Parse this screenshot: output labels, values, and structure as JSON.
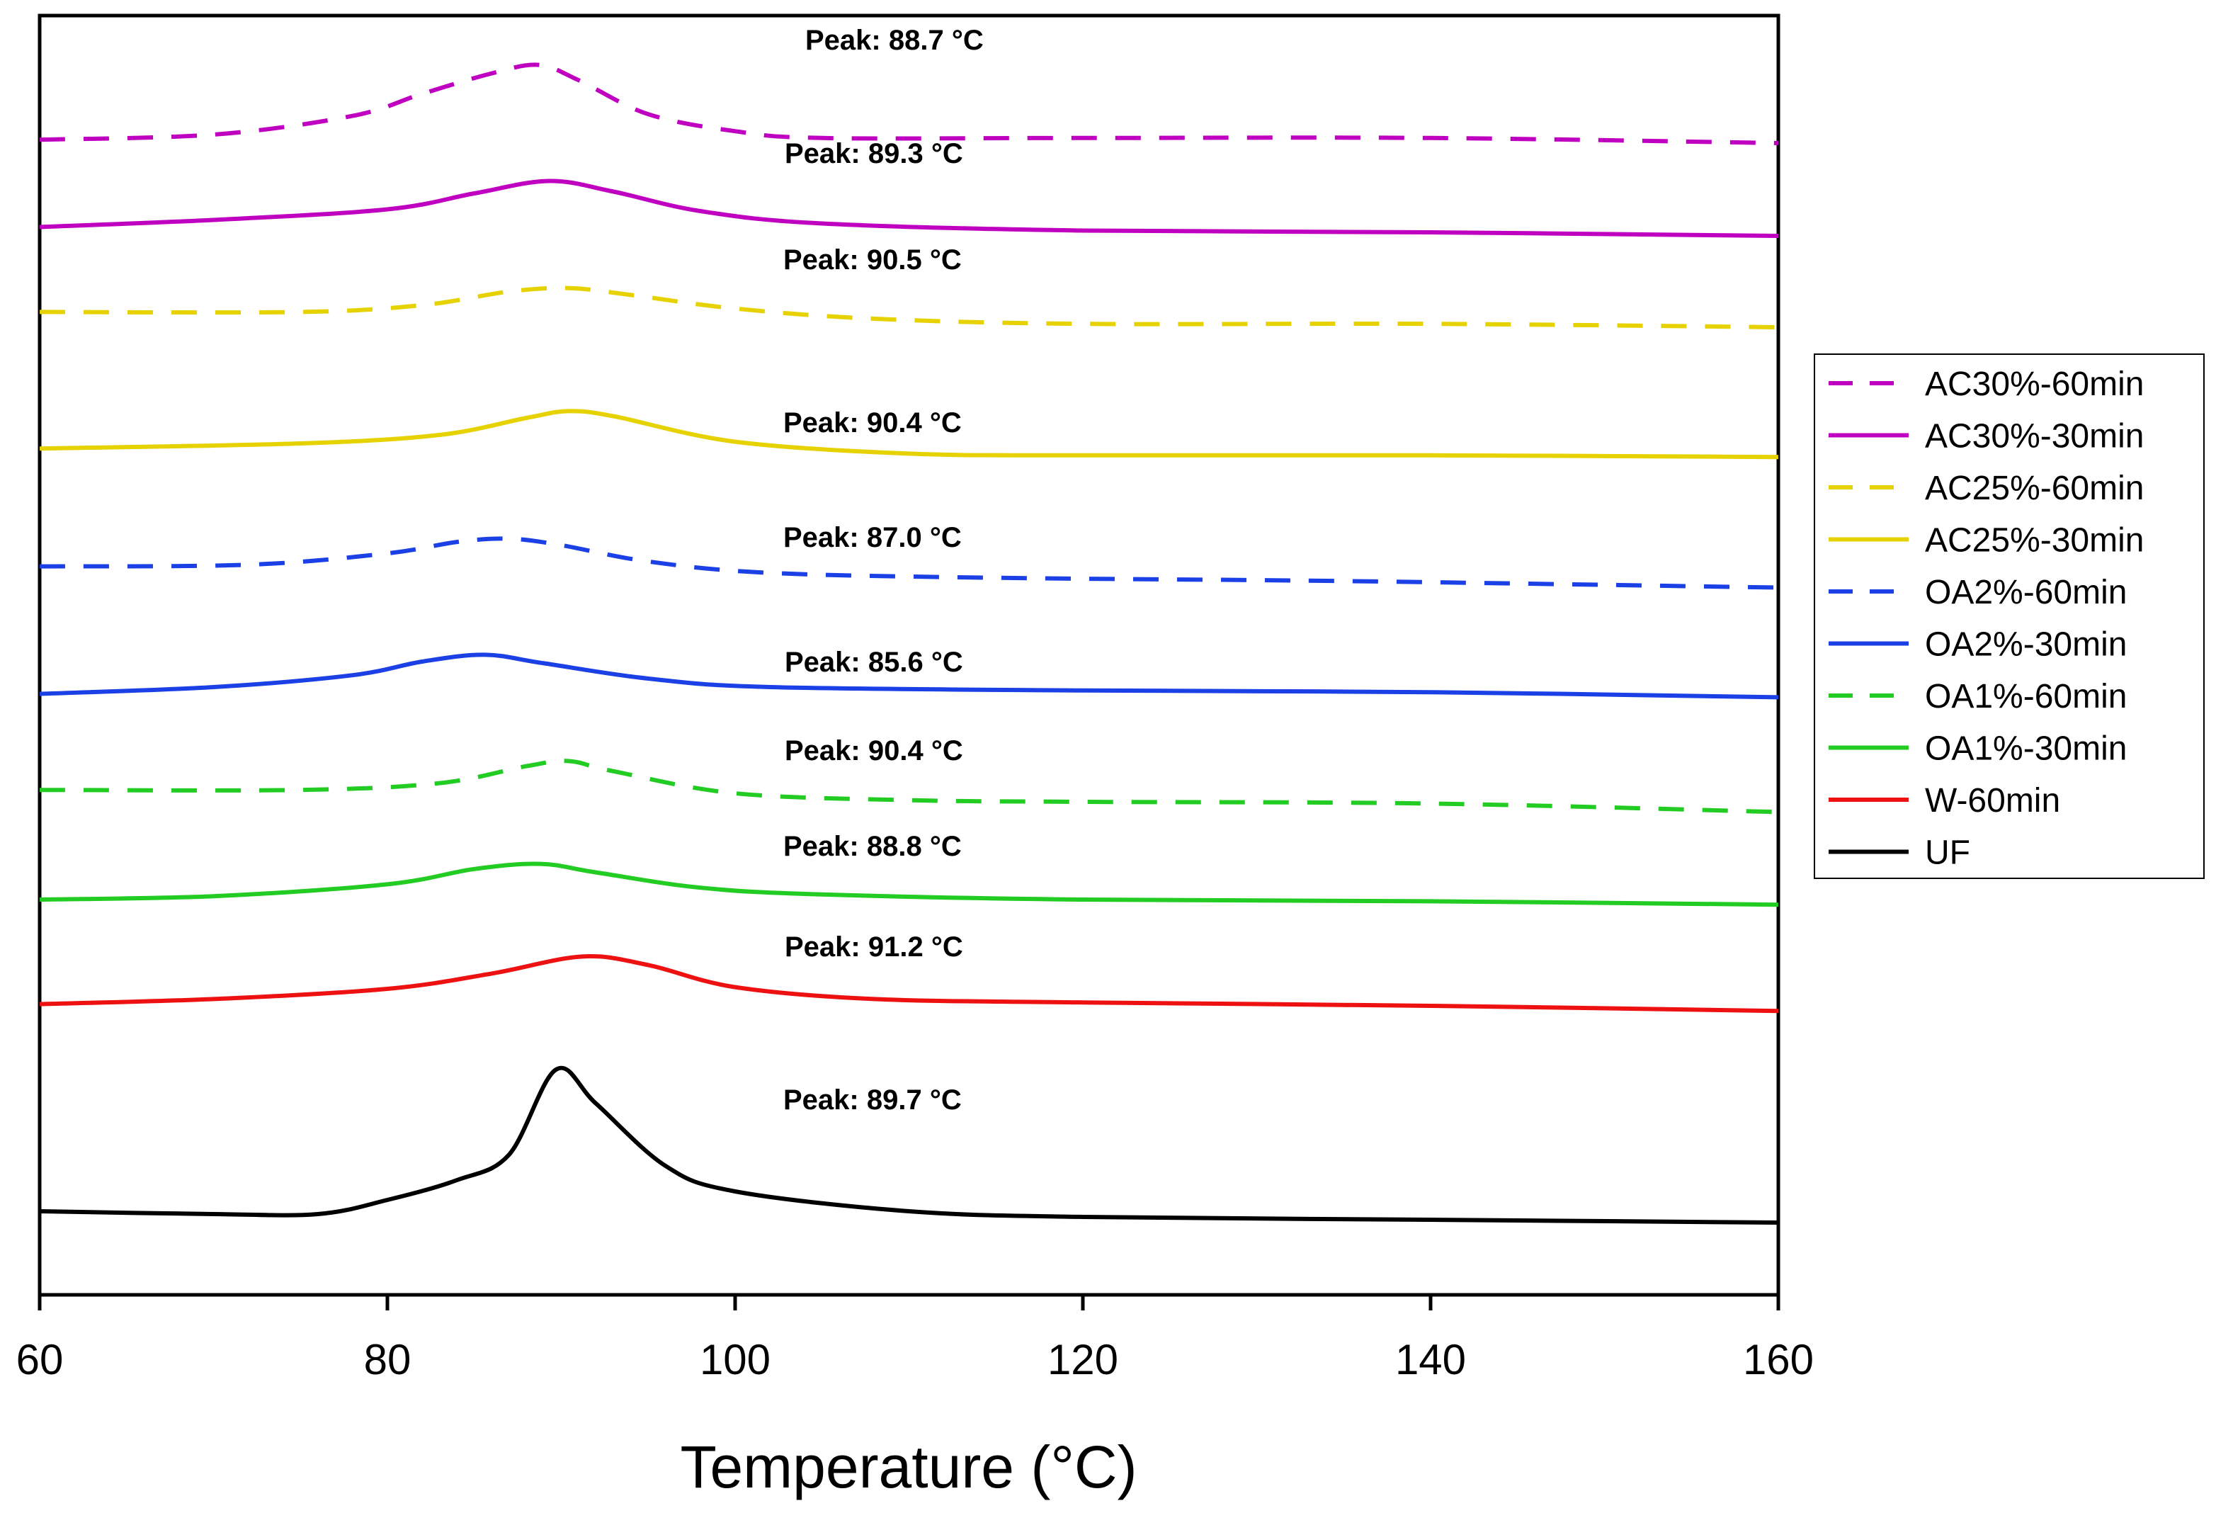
{
  "chart_data": {
    "type": "line",
    "title": "",
    "xlabel": "Temperature (°C)",
    "ylabel": "",
    "xlim": [
      60,
      160
    ],
    "x_ticks": [
      60,
      80,
      100,
      120,
      140,
      160
    ],
    "grid": false,
    "legend_position": "right",
    "series": [
      {
        "name": "AC30%-60min",
        "color": "#c000c0",
        "style": "dashed",
        "peak_label": "Peak: 88.7 °C",
        "points": [
          [
            60,
            73
          ],
          [
            70,
            70
          ],
          [
            78,
            59
          ],
          [
            82,
            46
          ],
          [
            86,
            34
          ],
          [
            88.7,
            29
          ],
          [
            91,
            38
          ],
          [
            95,
            58
          ],
          [
            100,
            68
          ],
          [
            105,
            72
          ],
          [
            120,
            72
          ],
          [
            140,
            72
          ],
          [
            160,
            75
          ]
        ]
      },
      {
        "name": "AC30%-30min",
        "color": "#c000c0",
        "style": "solid",
        "peak_label": "Peak: 89.3 °C",
        "points": [
          [
            60,
            57
          ],
          [
            70,
            53
          ],
          [
            80,
            47
          ],
          [
            85,
            38
          ],
          [
            89.3,
            31
          ],
          [
            93,
            37
          ],
          [
            98,
            48
          ],
          [
            105,
            55
          ],
          [
            120,
            59
          ],
          [
            140,
            60
          ],
          [
            160,
            62
          ]
        ]
      },
      {
        "name": "AC25%-60min",
        "color": "#e6d200",
        "style": "dashed",
        "peak_label": "Peak: 90.5 °C",
        "points": [
          [
            60,
            46
          ],
          [
            75,
            46
          ],
          [
            82,
            42
          ],
          [
            87,
            34
          ],
          [
            90.5,
            32
          ],
          [
            94,
            36
          ],
          [
            100,
            44
          ],
          [
            108,
            50
          ],
          [
            120,
            53
          ],
          [
            140,
            53
          ],
          [
            160,
            55
          ]
        ]
      },
      {
        "name": "AC25%-30min",
        "color": "#e6d200",
        "style": "solid",
        "peak_label": "Peak: 90.4 °C",
        "points": [
          [
            60,
            43
          ],
          [
            75,
            40
          ],
          [
            83,
            35
          ],
          [
            88,
            25
          ],
          [
            90.4,
            21
          ],
          [
            93,
            24
          ],
          [
            100,
            39
          ],
          [
            110,
            46
          ],
          [
            120,
            47
          ],
          [
            140,
            47
          ],
          [
            160,
            48
          ]
        ]
      },
      {
        "name": "OA2%-60min",
        "color": "#1a40e6",
        "style": "dashed",
        "peak_label": "Peak: 87.0 °C",
        "points": [
          [
            60,
            52
          ],
          [
            72,
            51
          ],
          [
            80,
            44
          ],
          [
            84,
            37
          ],
          [
            87,
            35
          ],
          [
            90,
            39
          ],
          [
            95,
            49
          ],
          [
            102,
            56
          ],
          [
            115,
            59
          ],
          [
            135,
            61
          ],
          [
            160,
            65
          ]
        ]
      },
      {
        "name": "OA2%-30min",
        "color": "#1a40e6",
        "style": "solid",
        "peak_label": "Peak: 85.6 °C",
        "points": [
          [
            60,
            54
          ],
          [
            70,
            50
          ],
          [
            78,
            43
          ],
          [
            82,
            35
          ],
          [
            85.6,
            31
          ],
          [
            89,
            36
          ],
          [
            95,
            45
          ],
          [
            102,
            50
          ],
          [
            120,
            52
          ],
          [
            140,
            53
          ],
          [
            160,
            56
          ]
        ]
      },
      {
        "name": "OA1%-60min",
        "color": "#22cc22",
        "style": "dashed",
        "peak_label": "Peak: 90.4 °C",
        "points": [
          [
            60,
            48
          ],
          [
            75,
            48
          ],
          [
            83,
            44
          ],
          [
            88,
            34
          ],
          [
            90.4,
            31
          ],
          [
            93,
            37
          ],
          [
            100,
            50
          ],
          [
            110,
            54
          ],
          [
            120,
            55
          ],
          [
            140,
            56
          ],
          [
            160,
            61
          ]
        ]
      },
      {
        "name": "OA1%-30min",
        "color": "#22cc22",
        "style": "solid",
        "peak_label": "Peak: 88.8 °C",
        "points": [
          [
            60,
            50
          ],
          [
            70,
            48
          ],
          [
            80,
            41
          ],
          [
            85,
            32
          ],
          [
            88.8,
            29
          ],
          [
            92,
            34
          ],
          [
            98,
            43
          ],
          [
            105,
            47
          ],
          [
            120,
            50
          ],
          [
            140,
            51
          ],
          [
            160,
            53
          ]
        ]
      },
      {
        "name": "W-60min",
        "color": "#ee1111",
        "style": "solid",
        "peak_label": "Peak: 91.2 °C",
        "points": [
          [
            60,
            49
          ],
          [
            70,
            46
          ],
          [
            80,
            40
          ],
          [
            86,
            31
          ],
          [
            91.2,
            21
          ],
          [
            95,
            26
          ],
          [
            100,
            39
          ],
          [
            108,
            46
          ],
          [
            120,
            48
          ],
          [
            140,
            50
          ],
          [
            160,
            53
          ]
        ]
      },
      {
        "name": "UF",
        "color": "#000000",
        "style": "solid",
        "peak_label": "Peak: 89.7 °C",
        "points": [
          [
            60,
            90
          ],
          [
            70,
            91
          ],
          [
            76,
            91
          ],
          [
            80,
            86
          ],
          [
            84,
            79
          ],
          [
            87,
            70
          ],
          [
            89.7,
            40
          ],
          [
            92,
            52
          ],
          [
            96,
            74
          ],
          [
            100,
            83
          ],
          [
            110,
            90
          ],
          [
            120,
            92
          ],
          [
            140,
            93
          ],
          [
            160,
            94
          ]
        ]
      }
    ]
  }
}
